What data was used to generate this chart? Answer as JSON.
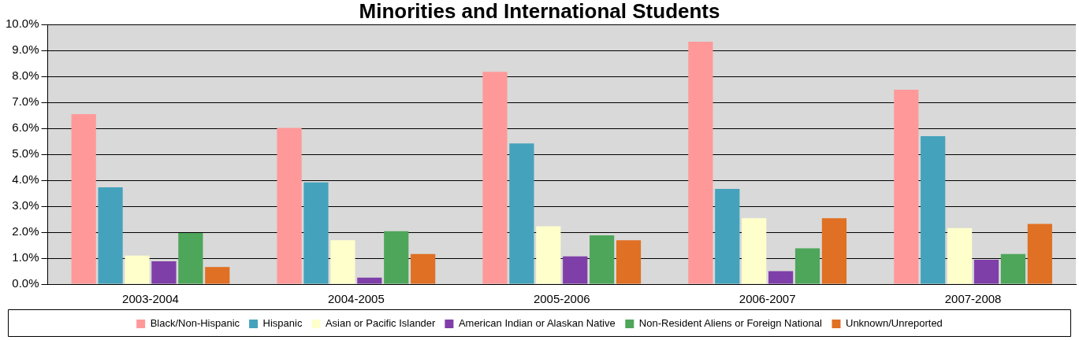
{
  "chart_data": {
    "type": "bar",
    "title": "Minorities and International Students",
    "categories": [
      "2003-2004",
      "2004-2005",
      "2005-2006",
      "2006-2007",
      "2007-2008"
    ],
    "series": [
      {
        "name": "Black/Non-Hispanic",
        "color": "#ff9999",
        "values": [
          6.55,
          6.02,
          8.18,
          9.34,
          7.49
        ]
      },
      {
        "name": "Hispanic",
        "color": "#45a2bc",
        "values": [
          3.73,
          3.92,
          5.42,
          3.67,
          5.7
        ]
      },
      {
        "name": "Asian or Pacific Islander",
        "color": "#ffffcc",
        "values": [
          1.1,
          1.69,
          2.23,
          2.54,
          2.16
        ]
      },
      {
        "name": "American Indian or Alaskan Native",
        "color": "#7f3fa8",
        "values": [
          0.88,
          0.25,
          1.07,
          0.5,
          0.94
        ]
      },
      {
        "name": "Non-Resident Aliens or Foreign National",
        "color": "#4ea65a",
        "values": [
          1.97,
          2.04,
          1.88,
          1.38,
          1.16
        ]
      },
      {
        "name": "Unknown/Unreported",
        "color": "#e07024",
        "values": [
          0.66,
          1.16,
          1.69,
          2.54,
          2.32
        ]
      }
    ],
    "ylim": [
      0,
      10
    ],
    "yticks": [
      {
        "value": 0,
        "label": "0.0%"
      },
      {
        "value": 1,
        "label": "1.0%"
      },
      {
        "value": 2,
        "label": "2.0%"
      },
      {
        "value": 3,
        "label": "3.0%"
      },
      {
        "value": 4,
        "label": "4.0%"
      },
      {
        "value": 5,
        "label": "5.0%"
      },
      {
        "value": 6,
        "label": "6.0%"
      },
      {
        "value": 7,
        "label": "7.0%"
      },
      {
        "value": 8,
        "label": "8.0%"
      },
      {
        "value": 9,
        "label": "9.0%"
      },
      {
        "value": 10,
        "label": "10.0%"
      }
    ],
    "grid": "y",
    "legend": "bottom"
  }
}
